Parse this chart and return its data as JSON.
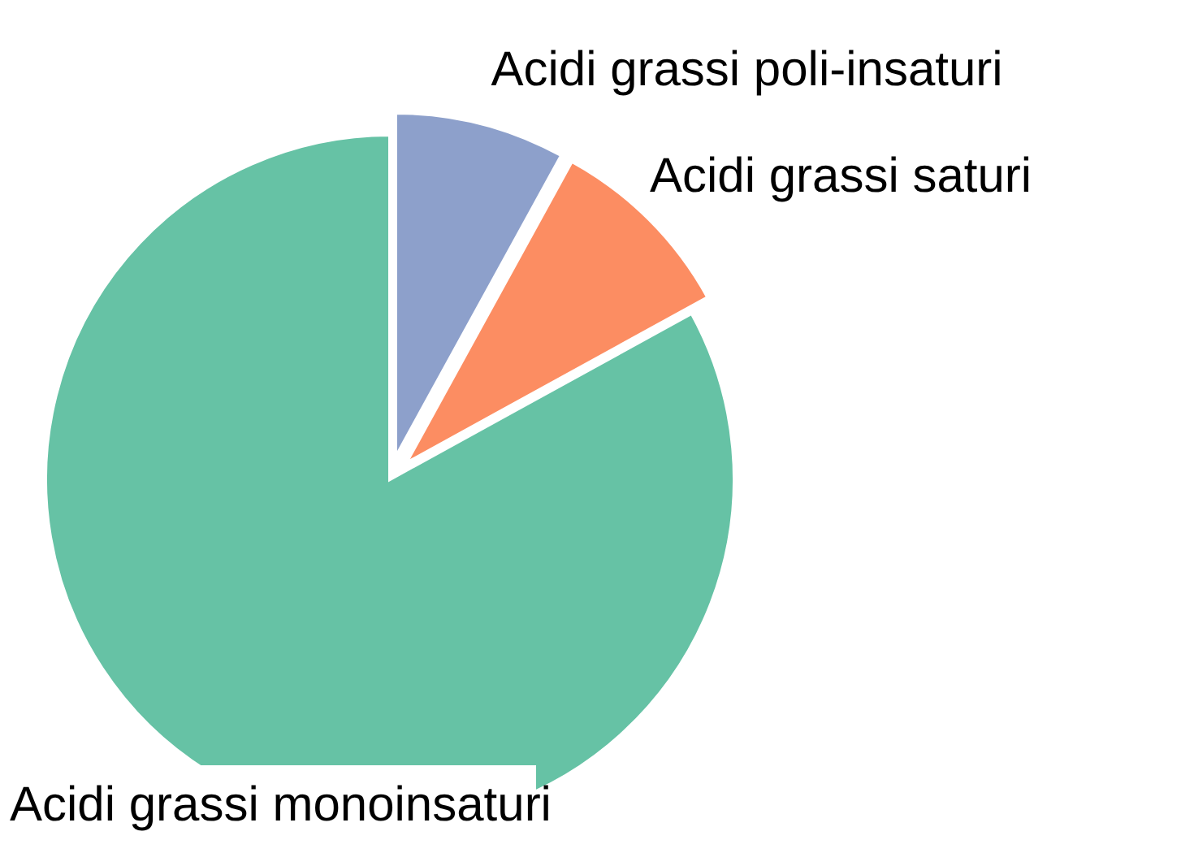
{
  "chart_data": {
    "type": "pie",
    "categories": [
      "Acidi grassi poli-insaturi",
      "Acidi grassi saturi",
      "Acidi grassi monoinsaturi"
    ],
    "values": [
      8,
      9,
      83
    ],
    "colors": [
      "#8da0cb",
      "#fc8d62",
      "#66c2a5"
    ]
  }
}
